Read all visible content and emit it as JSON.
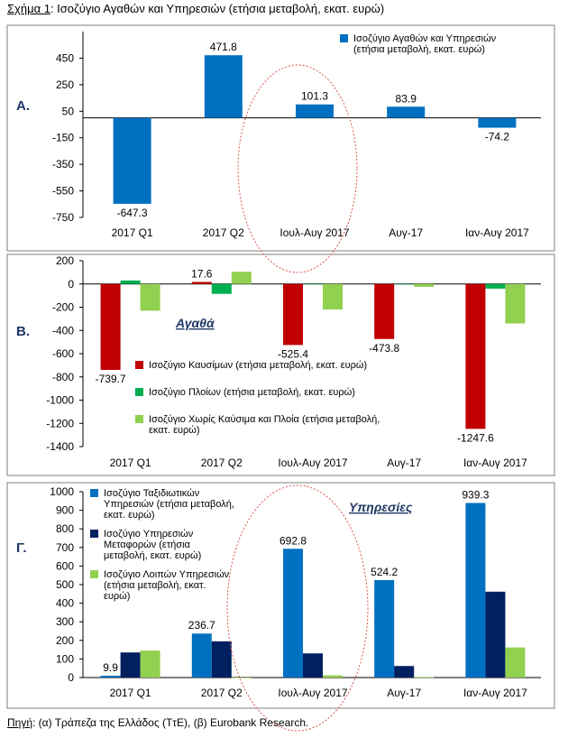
{
  "header": {
    "title_prefix": "Σχήμα 1",
    "title_rest": ": Ισοζύγιο Αγαθών και Υπηρεσιών (ετήσια μεταβολή, εκατ. ευρώ)"
  },
  "footer": {
    "source_prefix": "Πηγή",
    "source_rest": ": (α) Τράπεζα της Ελλάδος (ΤτΕ), (β) Eurobank Research."
  },
  "colors": {
    "blue": "#0070C0",
    "red": "#C00000",
    "green": "#00B050",
    "light_green": "#92D050",
    "navy": "#002060",
    "ellipse": "#D9534F"
  },
  "chart_data": [
    {
      "panel_label": "Α.",
      "type": "bar",
      "categories": [
        "2017 Q1",
        "2017 Q2",
        "Ιουλ-Αυγ 2017",
        "Αυγ-17",
        "Ιαν-Αυγ 2017"
      ],
      "ylim": [
        -750,
        650
      ],
      "yticks": [
        450,
        250,
        50,
        -150,
        -350,
        -550,
        -750
      ],
      "series": [
        {
          "name": "Ισοζύγιο Αγαθών και Υπηρεσιών (ετήσια μεταβολή, εκατ. ευρώ)",
          "legend_lines": [
            "Ισοζύγιο Αγαθών και Υπηρεσιών",
            "(ετήσια μεταβολή, εκατ. ευρώ)"
          ],
          "color": "#0070C0",
          "values": [
            -647.3,
            471.8,
            101.3,
            83.9,
            -74.2
          ]
        }
      ],
      "data_labels": [
        "-647.3",
        "471.8",
        "101.3",
        "83.9",
        "-74.2"
      ]
    },
    {
      "panel_label": "Β.",
      "type": "bar",
      "annotation": "Αγαθά",
      "categories": [
        "2017 Q1",
        "2017 Q2",
        "Ιουλ-Αυγ 2017",
        "Αυγ-17",
        "Ιαν-Αυγ 2017"
      ],
      "ylim": [
        -1400,
        200
      ],
      "yticks": [
        200,
        0,
        -200,
        -400,
        -600,
        -800,
        -1000,
        -1200,
        -1400
      ],
      "series": [
        {
          "name": "Ισοζύγιο Καυσίμων (ετήσια μεταβολή, εκατ. ευρώ)",
          "legend_lines": [
            "Ισοζύγιο Καυσίμων (ετήσια μεταβολή, εκατ. ευρώ)"
          ],
          "color": "#C00000",
          "values": [
            -739.7,
            17.6,
            -525.4,
            -473.8,
            -1247.6
          ]
        },
        {
          "name": "Ισοζύγιο Πλοίων (ετήσια μεταβολή, εκατ. ευρώ)",
          "legend_lines": [
            "Ισοζύγιο Πλοίων (ετήσια μεταβολή, εκατ. ευρώ)"
          ],
          "color": "#00B050",
          "values": [
            30,
            -85,
            5,
            -5,
            -40
          ]
        },
        {
          "name": "Ισοζύγιο Χωρίς Καύσιμα και Πλοία (ετήσια μεταβολή, εκατ. ευρώ)",
          "legend_lines": [
            "Ισοζύγιο Χωρίς Καύσιμα και Πλοία (ετήσια μεταβολή,",
            "εκατ. ευρώ)"
          ],
          "color": "#92D050",
          "values": [
            -230,
            105,
            -220,
            -25,
            -340
          ]
        }
      ],
      "data_labels": [
        "-739.7",
        "17.6",
        "-525.4",
        "-473.8",
        "-1247.6"
      ]
    },
    {
      "panel_label": "Γ.",
      "type": "bar",
      "annotation": "Υπηρεσίες",
      "categories": [
        "2017 Q1",
        "2017 Q2",
        "Ιουλ-Αυγ 2017",
        "Αυγ-17",
        "Ιαν-Αυγ 2017"
      ],
      "ylim": [
        0,
        1000
      ],
      "yticks": [
        1000,
        900,
        800,
        700,
        600,
        500,
        400,
        300,
        200,
        100,
        0
      ],
      "series": [
        {
          "name": "Ισοζύγιο Ταξιδιωτικών Υπηρεσιών (ετήσια μεταβολή, εκατ. ευρώ)",
          "legend_lines": [
            "Ισοζύγιο Ταξιδιωτικών",
            "Υπηρεσιών (ετήσια μεταβολή,",
            "εκατ. ευρώ)"
          ],
          "color": "#0070C0",
          "values": [
            9.9,
            236.7,
            692.8,
            524.2,
            939.3
          ]
        },
        {
          "name": "Ισοζύγιο Υπηρεσιών Μεταφορών (ετήσια μεταβολή, εκατ. ευρώ)",
          "legend_lines": [
            "Ισοζύγιο Υπηρεσιών",
            "Μεταφορών (ετήσια",
            "μεταβολή, εκατ. ευρώ)"
          ],
          "color": "#002060",
          "values": [
            135,
            195,
            130,
            62,
            462
          ]
        },
        {
          "name": "Ισοζύγιο Λοιπών Υπηρεσιών (ετήσια μεταβολή, εκατ. ευρώ)",
          "legend_lines": [
            "Ισοζύγιο Λοιπών Υπηρεσιών",
            "(ετήσια μεταβολή, εκατ.",
            "ευρώ)"
          ],
          "color": "#92D050",
          "values": [
            145,
            0,
            12,
            2,
            162
          ]
        }
      ],
      "data_labels": [
        "9.9",
        "236.7",
        "692.8",
        "524.2",
        "939.3"
      ]
    }
  ]
}
